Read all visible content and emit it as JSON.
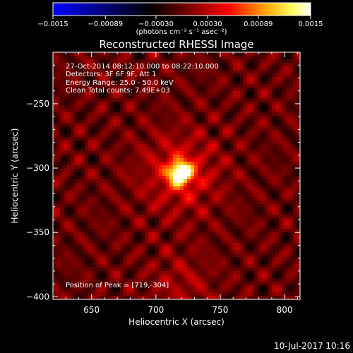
{
  "chart_data": {
    "type": "heatmap",
    "title": "Reconstructed RHESSI Image",
    "xlabel": "Heliocentric X (arcsec)",
    "ylabel": "Heliocentric Y (arcsec)",
    "xlim": [
      620,
      812
    ],
    "ylim": [
      -402,
      -210
    ],
    "x_ticks": [
      {
        "value": 650,
        "label": "650"
      },
      {
        "value": 700,
        "label": "700"
      },
      {
        "value": 750,
        "label": "750"
      },
      {
        "value": 800,
        "label": "800"
      }
    ],
    "y_ticks": [
      {
        "value": -250,
        "label": "−250"
      },
      {
        "value": -300,
        "label": "−300"
      },
      {
        "value": -350,
        "label": "−350"
      },
      {
        "value": -400,
        "label": "−400"
      }
    ],
    "colorbar": {
      "range": [
        -0.0015,
        0.0015
      ],
      "ticks": [
        {
          "value": -0.0015,
          "label": "−0.0015"
        },
        {
          "value": -0.00089,
          "label": "−0.00089"
        },
        {
          "value": -0.0003,
          "label": "−0.00030"
        },
        {
          "value": 0.0003,
          "label": "0.00030"
        },
        {
          "value": 0.00089,
          "label": "0.00089"
        },
        {
          "value": 0.0015,
          "label": "0.0015"
        }
      ],
      "unit_label": "(photons cm⁻² s⁻¹ asec⁻²)",
      "colormap": [
        "#0000ff",
        "#000000",
        "#8c0000",
        "#ff0000",
        "#ffa000",
        "#ffff60",
        "#ffffff"
      ]
    },
    "annotations": [
      "27-Oct-2014 08:12:10.000 to 08:22:10.000",
      "Detectors: 3F 6F 9F, Att 1",
      "Energy Range: 25.0 - 50.0 keV",
      "Clean     Total counts: 7.49E+03"
    ],
    "peak": {
      "x": 719,
      "y": -304
    },
    "peak_label": "Position of Peak = [719,-304]",
    "footer": "10-Jul-2017 10:16"
  }
}
